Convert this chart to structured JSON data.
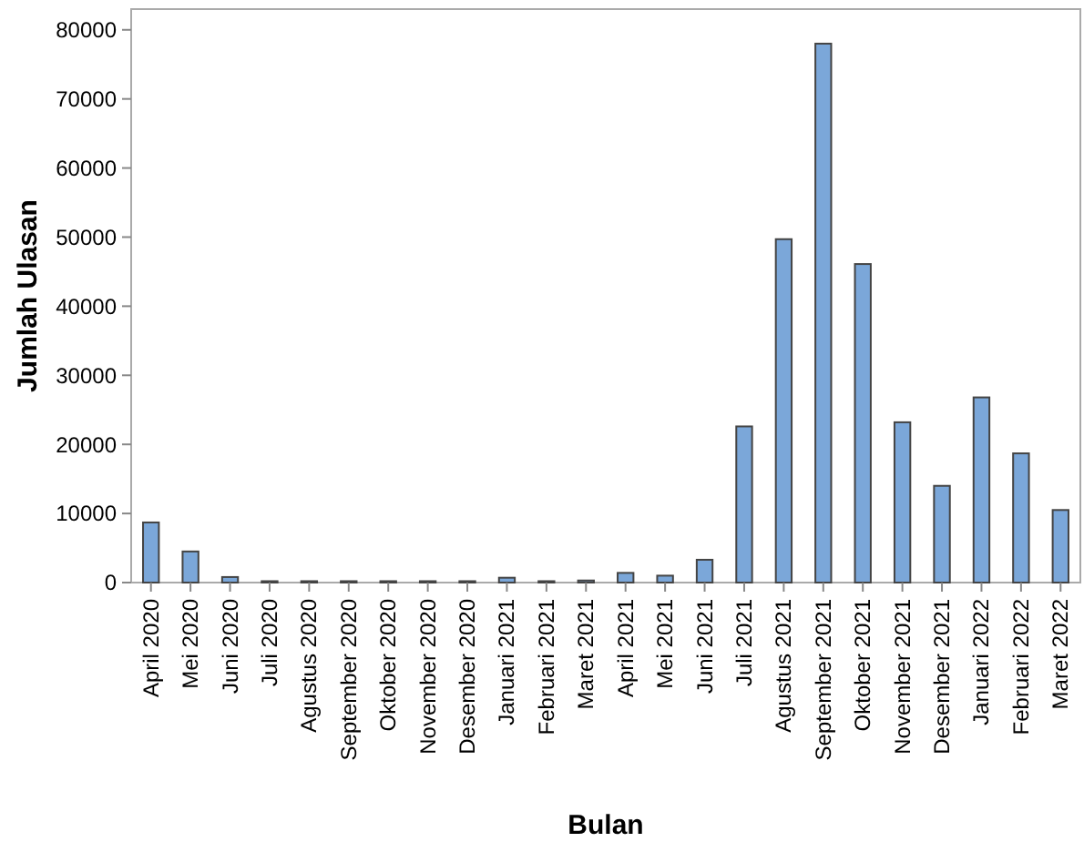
{
  "chart_data": {
    "type": "bar",
    "xlabel": "Bulan",
    "ylabel": "Jumlah Ulasan",
    "categories": [
      "April 2020",
      "Mei 2020",
      "Juni 2020",
      "Juli 2020",
      "Agustus 2020",
      "September 2020",
      "Oktober 2020",
      "November 2020",
      "Desember 2020",
      "Januari 2021",
      "Februari 2021",
      "Maret 2021",
      "April 2021",
      "Mei 2021",
      "Juni 2021",
      "Juli 2021",
      "Agustus 2021",
      "September 2021",
      "Oktober 2021",
      "November 2021",
      "Desember 2021",
      "Januari 2022",
      "Februari 2022",
      "Maret 2022"
    ],
    "values": [
      8700,
      4500,
      800,
      200,
      200,
      200,
      200,
      200,
      200,
      700,
      200,
      300,
      1400,
      1000,
      3300,
      22600,
      49700,
      78000,
      46100,
      23200,
      14000,
      26800,
      18700,
      10500
    ],
    "color": "#7ba7d9",
    "ylim": [
      0,
      83000
    ],
    "yticks": [
      0,
      10000,
      20000,
      30000,
      40000,
      50000,
      60000,
      70000,
      80000
    ],
    "grid": false
  }
}
